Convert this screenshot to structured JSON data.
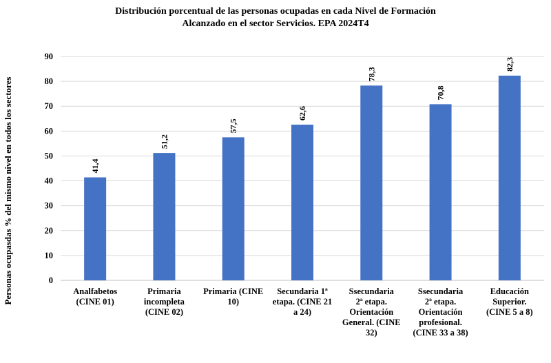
{
  "chart_data": {
    "type": "bar",
    "title_line1": "Distribución porcentual de las personas ocupadas en cada Nivel de Formación",
    "title_line2": "Alcanzado en el sector Servicios. EPA 2024T4",
    "ylabel": "Personas ocupasdas % del mismo nivel en todos los sectores",
    "xlabel": "",
    "ylim": [
      0,
      90
    ],
    "yticks": [
      "0",
      "10",
      "20",
      "30",
      "40",
      "50",
      "60",
      "70",
      "80",
      "90"
    ],
    "categories": [
      [
        "Analfabetos",
        "(CINE 01)"
      ],
      [
        "Primaria",
        "incompleta",
        "(CINE 02)"
      ],
      [
        "Primaria (CINE",
        "10)"
      ],
      [
        "Secundaria 1ª",
        "etapa. (CINE 21",
        "a 24)"
      ],
      [
        "Ssecundaria",
        "2ª etapa.",
        "Orientación",
        "General. (CINE",
        "32)"
      ],
      [
        "Ssecundaria",
        "2ª etapa.",
        "Orientación",
        "profesional.",
        "(CINE 33 a 38)"
      ],
      [
        "Educación",
        "Superior.",
        "(CINE 5 a 8)"
      ]
    ],
    "values": [
      41.4,
      51.2,
      57.5,
      62.6,
      78.3,
      70.8,
      82.3
    ],
    "value_labels": [
      "41,4",
      "51,2",
      "57,5",
      "62,6",
      "78,3",
      "70,8",
      "82,3"
    ],
    "bar_color": "#4472C4",
    "grid": true
  }
}
